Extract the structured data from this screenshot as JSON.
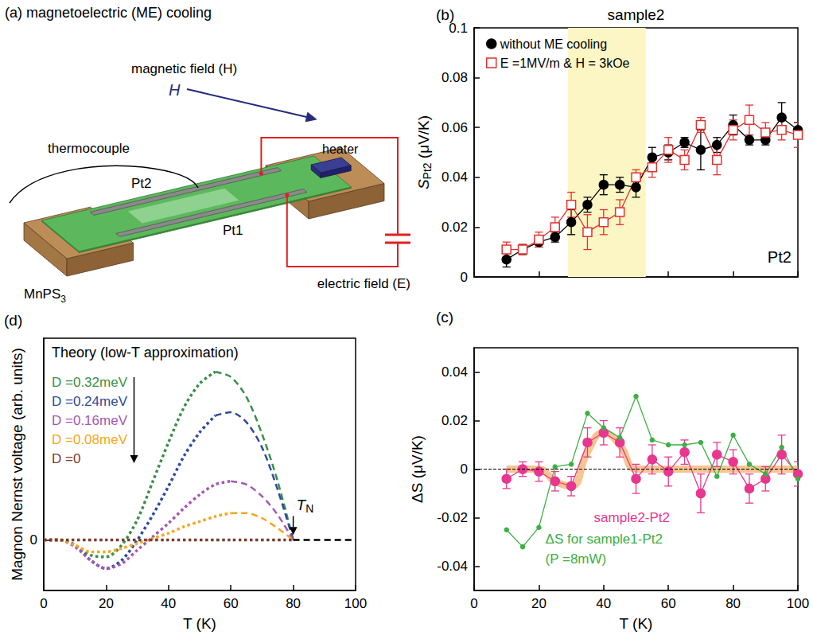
{
  "diagram": {
    "title": "(a) magnetoelectric (ME) cooling",
    "magnetic_field": "magnetic field (H)",
    "field_symbol": "H",
    "thermocouple": "thermocouple",
    "heater": "heater",
    "strip_2": "Pt2",
    "strip_1": "Pt1",
    "sample": "MnPS3",
    "electric_field": "electric field (E)"
  },
  "chart_data": [
    {
      "panel": "(b)",
      "type": "line",
      "title": "sample2",
      "y_label": "SPt2 (μV/K)",
      "xlim": [
        0,
        100
      ],
      "xticks": [
        0,
        20,
        40,
        60,
        80,
        100
      ],
      "ylim": [
        0,
        0.1
      ],
      "yticks": [
        0,
        0.02,
        0.04,
        0.06,
        0.08,
        0.1
      ],
      "tick_labels": "y",
      "legend": "upper left",
      "shaded_range": [
        29,
        53
      ],
      "annotations": [
        "Pt2"
      ],
      "x": [
        10,
        15,
        20,
        25,
        30,
        35,
        40,
        45,
        50,
        55,
        60,
        65,
        70,
        75,
        80,
        85,
        90,
        95,
        100
      ],
      "series": [
        {
          "name": "without ME cooling",
          "color": "#000000",
          "marker": "circle",
          "values": [
            0.007,
            0.011,
            0.014,
            0.016,
            0.022,
            0.029,
            0.037,
            0.037,
            0.036,
            0.048,
            0.05,
            0.054,
            0.051,
            0.053,
            0.061,
            0.055,
            0.055,
            0.064,
            0.059
          ],
          "errors": [
            0.003,
            0.002,
            0.002,
            0.002,
            0.005,
            0.003,
            0.004,
            0.003,
            0.004,
            0.004,
            0.003,
            0.002,
            0.008,
            0.003,
            0.004,
            0.002,
            0.002,
            0.006,
            0.003
          ]
        },
        {
          "name": "E =1MV/m & H = 3kOe",
          "color": "#e2322f",
          "marker": "open_square",
          "values": [
            0.011,
            0.011,
            0.015,
            0.02,
            0.029,
            0.018,
            0.022,
            0.026,
            0.04,
            0.044,
            0.051,
            0.047,
            0.061,
            0.047,
            0.059,
            0.063,
            0.058,
            0.059,
            0.057
          ],
          "errors": [
            0.003,
            0.002,
            0.003,
            0.004,
            0.005,
            0.007,
            0.005,
            0.005,
            0.003,
            0.004,
            0.005,
            0.004,
            0.003,
            0.006,
            0.004,
            0.006,
            0.004,
            0.004,
            0.005
          ]
        }
      ]
    },
    {
      "panel": "(c)",
      "type": "line",
      "x_label": "T (K)",
      "y_label": "ΔS (μV/K)",
      "xlim": [
        0,
        100
      ],
      "xticks": [
        0,
        20,
        40,
        60,
        80,
        100
      ],
      "ylim": [
        -0.05,
        0.05
      ],
      "yticks": [
        -0.04,
        -0.02,
        0,
        0.02,
        0.04
      ],
      "hline": 0,
      "x": [
        10,
        15,
        20,
        25,
        30,
        35,
        40,
        45,
        50,
        55,
        60,
        65,
        70,
        75,
        80,
        85,
        90,
        95,
        100
      ],
      "series": [
        {
          "name": "sample2-Pt2",
          "color": "#e8378f",
          "marker": "circle",
          "values": [
            -0.004,
            0.0,
            -0.001,
            -0.005,
            -0.007,
            0.011,
            0.015,
            0.011,
            -0.004,
            0.004,
            -0.001,
            0.007,
            -0.01,
            0.006,
            0.003,
            -0.008,
            -0.004,
            0.006,
            -0.002
          ],
          "errors": [
            0.004,
            0.003,
            0.004,
            0.004,
            0.004,
            0.006,
            0.005,
            0.006,
            0.006,
            0.006,
            0.006,
            0.005,
            0.008,
            0.005,
            0.005,
            0.006,
            0.005,
            0.008,
            0.005
          ]
        },
        {
          "color": "#f6bf86",
          "line_style": "smooth",
          "values": [
            0,
            0,
            0,
            -0.005,
            -0.007,
            0.007,
            0.015,
            0.01,
            0,
            0,
            0,
            0,
            0,
            0,
            0,
            0,
            0,
            0,
            0
          ]
        },
        {
          "name": "ΔS for sample1-Pt2 (P =8mW)",
          "color": "#3cb043",
          "marker": "dot",
          "values": [
            -0.025,
            -0.032,
            -0.024,
            0.001,
            0.002,
            0.023,
            0.017,
            0.013,
            0.03,
            0.012,
            0.01,
            0.01,
            0.011,
            -0.003,
            0.014,
            0.002,
            -0.002,
            0.009,
            -0.004
          ]
        }
      ]
    },
    {
      "panel": "(d)",
      "type": "line",
      "title": "Theory (low-T approximation)",
      "x_label": "T (K)",
      "y_label": "Magnon Nernst voltage (arb. units)",
      "xlim": [
        0,
        100
      ],
      "xticks": [
        0,
        20,
        40,
        60,
        80,
        100
      ],
      "ylim": [
        -0.3,
        1.2
      ],
      "yticks": [
        0
      ],
      "legend": "upper left",
      "annotations": [
        "TN"
      ],
      "series": [
        {
          "name": "D =0.32meV",
          "color": "#3a8f48",
          "line_style": "dotted",
          "x": [
            0,
            5,
            10,
            15,
            20,
            25,
            30,
            35,
            40,
            45,
            50,
            55
          ],
          "values": [
            0,
            0,
            -0.03,
            -0.09,
            -0.1,
            -0.03,
            0.12,
            0.35,
            0.58,
            0.79,
            0.93,
            1
          ]
        },
        {
          "name": "D =0.32meV",
          "color": "#3a8f48",
          "line_style": "dashed",
          "x": [
            55,
            60,
            65,
            70,
            75,
            80
          ],
          "values": [
            1,
            0.97,
            0.85,
            0.63,
            0.35,
            0
          ]
        },
        {
          "name": "D =0.24meV",
          "color": "#2e4b9b",
          "line_style": "dotted",
          "x": [
            0,
            5,
            10,
            15,
            20,
            25,
            30,
            35,
            40,
            45,
            50,
            55
          ],
          "values": [
            0,
            0,
            -0.03,
            -0.12,
            -0.17,
            -0.12,
            0,
            0.15,
            0.32,
            0.5,
            0.64,
            0.74
          ]
        },
        {
          "name": "D =0.24meV",
          "color": "#2e4b9b",
          "line_style": "dashed",
          "x": [
            55,
            60,
            65,
            70,
            75,
            80
          ],
          "values": [
            0.74,
            0.76,
            0.7,
            0.55,
            0.3,
            0
          ]
        },
        {
          "name": "D =0.16meV",
          "color": "#a458b4",
          "line_style": "dotted",
          "x": [
            0,
            5,
            10,
            15,
            20,
            25,
            30,
            35,
            40,
            45,
            50,
            55,
            60
          ],
          "values": [
            0,
            0,
            -0.04,
            -0.12,
            -0.17,
            -0.14,
            -0.06,
            0.02,
            0.1,
            0.19,
            0.27,
            0.33,
            0.35
          ]
        },
        {
          "name": "D =0.16meV",
          "color": "#a458b4",
          "line_style": "dashed",
          "x": [
            60,
            65,
            70,
            75,
            80
          ],
          "values": [
            0.35,
            0.33,
            0.26,
            0.15,
            0
          ]
        },
        {
          "name": "D =0.08meV",
          "color": "#f5a623",
          "line_style": "dotted",
          "x": [
            0,
            5,
            10,
            15,
            20,
            25,
            30,
            35,
            40,
            45,
            50,
            55,
            60
          ],
          "values": [
            0,
            0,
            -0.03,
            -0.07,
            -0.07,
            -0.05,
            -0.02,
            0.01,
            0.04,
            0.08,
            0.11,
            0.14,
            0.16
          ]
        },
        {
          "name": "D =0.08meV",
          "color": "#f5a623",
          "line_style": "dashed",
          "x": [
            60,
            65,
            70,
            75,
            80
          ],
          "values": [
            0.16,
            0.16,
            0.13,
            0.07,
            0
          ]
        },
        {
          "name": "D =0",
          "color": "#7b3b2c",
          "line_style": "dotted",
          "x": [
            0,
            20,
            40,
            60,
            80
          ],
          "values": [
            0,
            0,
            0,
            0,
            0
          ]
        },
        {
          "color": "#000000",
          "line_style": "dashed",
          "x": [
            80,
            100
          ],
          "values": [
            0,
            0
          ]
        }
      ]
    }
  ]
}
